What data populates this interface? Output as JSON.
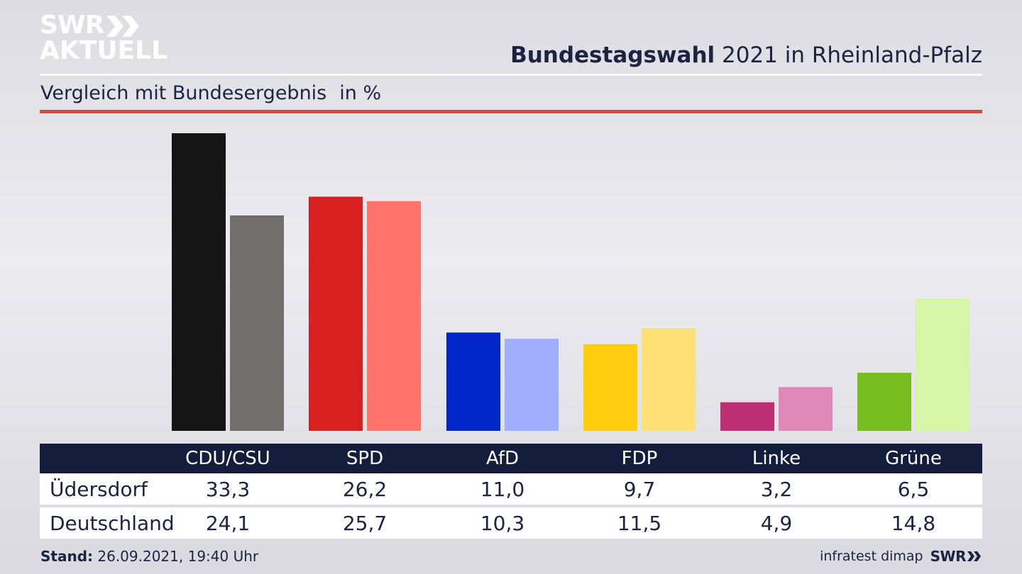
{
  "header": {
    "logo_top": "SWR",
    "logo_bottom": "AKTUELL",
    "title_bold": "Bundestagswahl",
    "title_rest": " 2021 in Rheinland-Pfalz",
    "subtitle": "Vergleich mit Bundesergebnis",
    "unit": "in %"
  },
  "colors": {
    "local": [
      "#151515",
      "#d7201f",
      "#0025c8",
      "#ffcd0d",
      "#bd2e74",
      "#78bd1e"
    ],
    "national": [
      "#716f6c",
      "#ff736b",
      "#9fadff",
      "#fee074",
      "#e088b8",
      "#d5f6a7"
    ]
  },
  "chart_data": {
    "type": "bar",
    "categories": [
      "CDU/CSU",
      "SPD",
      "AfD",
      "FDP",
      "Linke",
      "Grüne"
    ],
    "series": [
      {
        "name": "Üdersdorf",
        "values": [
          33.3,
          26.2,
          11.0,
          9.7,
          3.2,
          6.5
        ]
      },
      {
        "name": "Deutschland",
        "values": [
          24.1,
          25.7,
          10.3,
          11.5,
          4.9,
          14.8
        ]
      }
    ],
    "ylim": [
      0,
      33.3
    ]
  },
  "table": {
    "columns": [
      "CDU/CSU",
      "SPD",
      "AfD",
      "FDP",
      "Linke",
      "Grüne"
    ],
    "rows": [
      {
        "label": "Üdersdorf",
        "values": [
          "33,3",
          "26,2",
          "11,0",
          "9,7",
          "3,2",
          "6,5"
        ]
      },
      {
        "label": "Deutschland",
        "values": [
          "24,1",
          "25,7",
          "10,3",
          "11,5",
          "4,9",
          "14,8"
        ]
      }
    ]
  },
  "footer": {
    "stand_label": "Stand:",
    "stand_value": " 26.09.2021, 19:40 Uhr",
    "source": "infratest dimap",
    "brand": "SWR"
  }
}
